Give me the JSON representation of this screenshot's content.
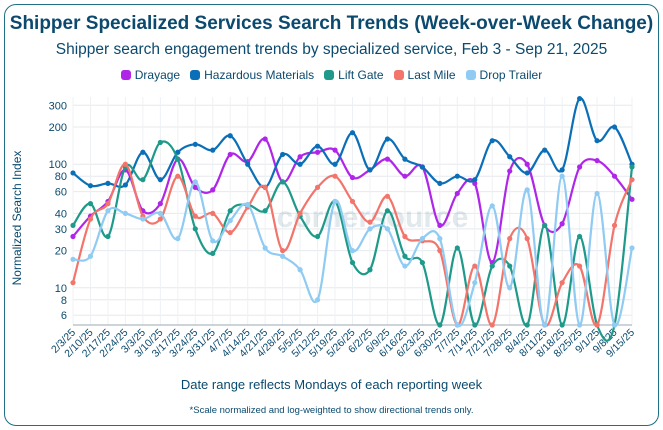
{
  "chart_data": {
    "type": "line",
    "title": "Shipper Specialized Services Search Trends (Week-over-Week Change)",
    "subtitle": "Shipper search engagement trends by specialized service, Feb 3 - Sep 21, 2025",
    "xlabel": "Date range reflects Mondays of each reporting week",
    "ylabel": "Normalized Search Index",
    "footnote": "*Scale normalized and log-weighted to show directional trends only.",
    "watermark": "cornersource",
    "y_scale": "log",
    "ylim": [
      5,
      350
    ],
    "y_ticks": [
      6,
      8,
      10,
      20,
      30,
      40,
      60,
      80,
      100,
      200,
      300
    ],
    "grid": true,
    "legend_position": "top-center",
    "categories": [
      "2/3/25",
      "2/10/25",
      "2/17/25",
      "2/24/25",
      "3/3/25",
      "3/10/25",
      "3/17/25",
      "3/24/25",
      "3/31/25",
      "4/7/25",
      "4/14/25",
      "4/21/25",
      "4/28/25",
      "5/5/25",
      "5/12/25",
      "5/19/25",
      "5/26/25",
      "6/2/25",
      "6/9/25",
      "6/16/25",
      "6/23/25",
      "6/30/25",
      "7/7/25",
      "7/14/25",
      "7/21/25",
      "7/28/25",
      "8/4/25",
      "8/11/25",
      "8/18/25",
      "8/25/25",
      "9/1/25",
      "9/8/25",
      "9/15/25"
    ],
    "series": [
      {
        "name": "Drayage",
        "color": "#b026e8",
        "values": [
          26,
          38,
          50,
          90,
          42,
          48,
          110,
          65,
          62,
          120,
          105,
          160,
          72,
          115,
          125,
          130,
          78,
          90,
          110,
          80,
          95,
          32,
          58,
          70,
          16,
          88,
          100,
          32,
          33,
          95,
          107,
          80,
          52
        ]
      },
      {
        "name": "Hazardous Materials",
        "color": "#0b6fb8",
        "values": [
          85,
          67,
          70,
          68,
          125,
          75,
          125,
          145,
          130,
          170,
          100,
          65,
          120,
          100,
          140,
          100,
          180,
          90,
          160,
          110,
          95,
          70,
          80,
          75,
          155,
          115,
          85,
          130,
          90,
          340,
          155,
          200,
          100
        ]
      },
      {
        "name": "Lift Gate",
        "color": "#1f9a8a",
        "values": [
          32,
          48,
          26,
          95,
          75,
          150,
          110,
          30,
          19,
          42,
          47,
          42,
          72,
          38,
          26,
          50,
          16,
          14,
          42,
          18,
          16,
          5,
          21,
          5,
          15,
          15,
          5,
          32,
          5,
          26,
          5,
          5,
          95
        ]
      },
      {
        "name": "Last Mile",
        "color": "#f2746b",
        "values": [
          11,
          36,
          48,
          100,
          38,
          36,
          80,
          38,
          40,
          28,
          45,
          65,
          20,
          40,
          65,
          80,
          50,
          34,
          55,
          26,
          24,
          20,
          5,
          15,
          5,
          25,
          25,
          5,
          11,
          15,
          5,
          32,
          75
        ]
      },
      {
        "name": "Drop Trailer",
        "color": "#8fcbf2",
        "values": [
          17,
          18,
          42,
          40,
          36,
          40,
          25,
          72,
          24,
          35,
          47,
          21,
          18,
          14,
          8,
          50,
          20,
          30,
          30,
          15,
          25,
          25,
          5,
          11,
          46,
          10,
          62,
          5,
          80,
          5,
          58,
          5,
          21
        ]
      }
    ]
  }
}
